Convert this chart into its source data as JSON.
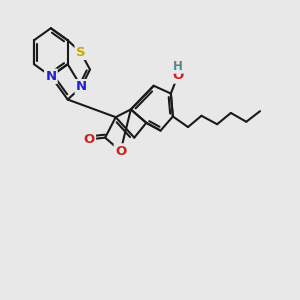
{
  "bg_color": "#e8e8e8",
  "bond_color": "#1a1a1a",
  "s_color": "#ccaa00",
  "n_color": "#2222cc",
  "o_color": "#cc2222",
  "oh_color": "#cc2222",
  "h_color": "#558888",
  "bond_lw": 1.5,
  "fig_w": 3.0,
  "fig_h": 3.0,
  "dpi": 100,
  "xlim": [
    0.0,
    10.5
  ],
  "ylim": [
    0.5,
    9.0
  ]
}
